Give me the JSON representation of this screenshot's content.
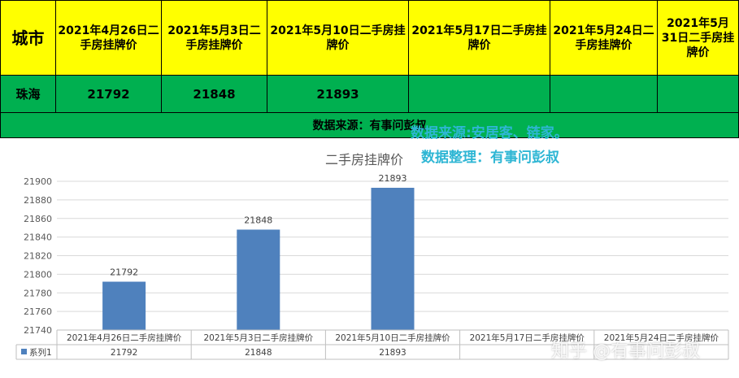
{
  "table": {
    "city_header": "城市",
    "date_headers": [
      "2021年4月26日二手房挂牌价",
      "2021年5月3日二手房挂牌价",
      "2021年5月10日二手房挂牌价",
      "2021年5月17日二手房挂牌价",
      "2021年5月24日二手房挂牌价",
      "2021年5月31日二手房挂牌价"
    ],
    "city": "珠海",
    "values": [
      "21792",
      "21848",
      "21893",
      "",
      "",
      ""
    ],
    "source_note": "数据来源：有事问彭叔"
  },
  "overlays": {
    "source_line": "数据来源:安居客、链家。",
    "organized_line": "数据整理：有事问彭叔",
    "watermark": "知乎 @有事问彭叔"
  },
  "colors": {
    "header_bg": "#ffff00",
    "row_bg": "#00b050",
    "bar": "#4f81bd",
    "overlay_text": "#2eb6d4"
  },
  "chart_data": {
    "type": "bar",
    "title": "二手房挂牌价",
    "categories": [
      "2021年4月26日二手房挂牌价",
      "2021年5月3日二手房挂牌价",
      "2021年5月10日二手房挂牌价",
      "2021年5月17日二手房挂牌价",
      "2021年5月24日二手房挂牌价"
    ],
    "series": [
      {
        "name": "系列1",
        "values": [
          21792,
          21848,
          21893,
          null,
          null
        ]
      }
    ],
    "ylim": [
      21740,
      21900
    ],
    "yticks": [
      21740,
      21760,
      21780,
      21800,
      21820,
      21840,
      21860,
      21880,
      21900
    ],
    "grid": true,
    "data_table": true
  }
}
